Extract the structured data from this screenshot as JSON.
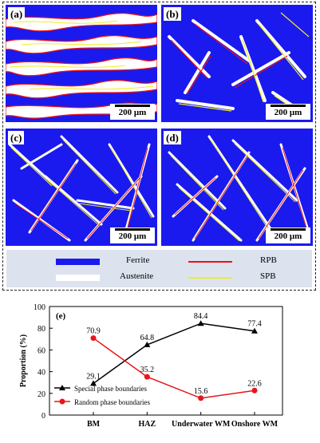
{
  "panels": [
    {
      "label": "(a)",
      "scale": "200 μm"
    },
    {
      "label": "(b)",
      "scale": "200 μm"
    },
    {
      "label": "(c)",
      "scale": "200 μm"
    },
    {
      "label": "(d)",
      "scale": "200 μm"
    }
  ],
  "phase_legend": {
    "ferrite": "Ferrite",
    "austenite": "Austenite",
    "rpb": "RPB",
    "spb": "SPB",
    "colors": {
      "ferrite": "#1a1aee",
      "austenite": "#ffffff",
      "rpb": "#ee1111",
      "spb": "#eeee22"
    }
  },
  "chart_data": {
    "type": "line",
    "panel_label": "(e)",
    "categories": [
      "BM",
      "HAZ",
      "Underwater WM",
      "Onshore WM"
    ],
    "ylabel": "Proportion (%)",
    "xlabel": "",
    "ylim": [
      0,
      100
    ],
    "yticks": [
      0,
      20,
      40,
      60,
      80,
      100
    ],
    "grid": false,
    "legend_position": "bottom-left",
    "series": [
      {
        "name": "Special phase boundaries",
        "values": [
          29.1,
          64.8,
          84.4,
          77.4
        ],
        "labels": [
          "29.1",
          "64.8",
          "84.4",
          "77.4"
        ],
        "color": "#000000",
        "marker": "triangle"
      },
      {
        "name": "Random phase boundaries",
        "values": [
          70.9,
          35.2,
          15.6,
          22.6
        ],
        "labels": [
          "70.9",
          "35.2",
          "15.6",
          "22.6"
        ],
        "color": "#e8151b",
        "marker": "circle"
      }
    ]
  }
}
